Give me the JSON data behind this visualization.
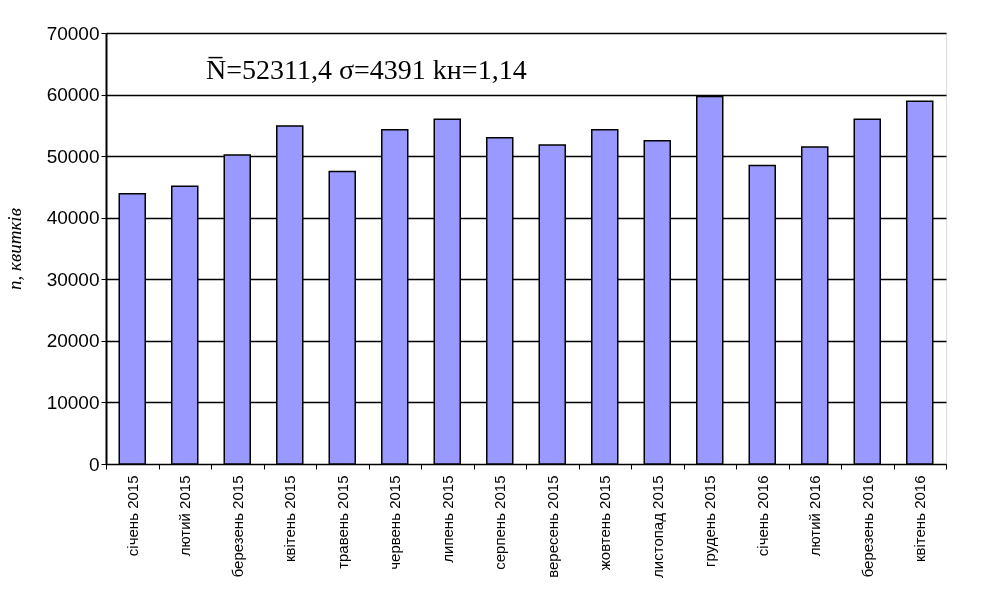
{
  "chart_data": {
    "type": "bar",
    "ylabel": "n, квитків",
    "categories": [
      "січень 2015",
      "лютий 2015",
      "березень 2015",
      "квітень 2015",
      "травень 2015",
      "червень 2015",
      "липень 2015",
      "серпень 2015",
      "вересень 2015",
      "жовтень 2015",
      "листопад 2015",
      "грудень 2015",
      "січень 2016",
      "лютий 2016",
      "березень 2016",
      "квітень 2016"
    ],
    "values": [
      43900,
      45100,
      50200,
      54900,
      47500,
      54300,
      56000,
      53000,
      51800,
      54300,
      52500,
      59700,
      48500,
      51500,
      56000,
      58900
    ],
    "color": "#9999ff",
    "ylim": [
      0,
      70000
    ],
    "yticks": [
      0,
      10000,
      20000,
      30000,
      40000,
      50000,
      60000,
      70000
    ],
    "grid": "y",
    "annotations": [
      "N̅=52311,4  σ=4391  kн=1,14"
    ]
  }
}
